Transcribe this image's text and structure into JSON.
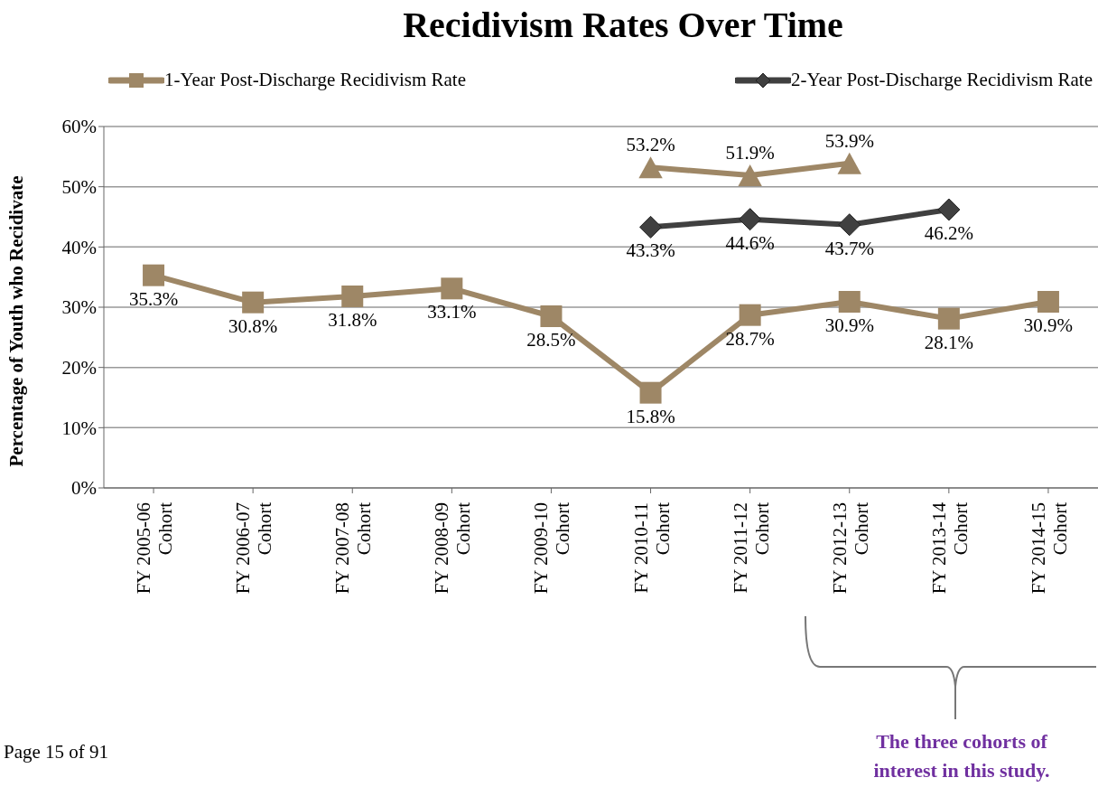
{
  "chart_data": {
    "type": "line",
    "title": "Recidivism Rates Over Time",
    "ylabel": "Percentage of Youth who Recidivate",
    "categories": [
      "FY 2005-06 Cohort",
      "FY 2006-07 Cohort",
      "FY 2007-08 Cohort",
      "FY 2008-09 Cohort",
      "FY 2009-10 Cohort",
      "FY 2010-11 Cohort",
      "FY 2011-12 Cohort",
      "FY 2012-13 Cohort",
      "FY 2013-14 Cohort",
      "FY 2014-15 Cohort"
    ],
    "series": [
      {
        "name": "1-Year Post-Discharge Recidivism Rate",
        "color": "#9e8766",
        "marker": "square",
        "values": [
          35.3,
          30.8,
          31.8,
          33.1,
          28.5,
          15.8,
          28.7,
          30.9,
          28.1,
          30.9
        ],
        "value_labels": [
          "35.3%",
          "30.8%",
          "31.8%",
          "33.1%",
          "28.5%",
          "15.8%",
          "28.7%",
          "30.9%",
          "28.1%",
          "30.9%"
        ]
      },
      {
        "color": "#9e8766",
        "marker": "triangle",
        "values": [
          null,
          null,
          null,
          null,
          null,
          53.2,
          51.9,
          53.9,
          null,
          null
        ],
        "value_labels": [
          null,
          null,
          null,
          null,
          null,
          "53.2%",
          "51.9%",
          "53.9%",
          null,
          null
        ]
      },
      {
        "name": "2-Year Post-Discharge Recidivism Rate",
        "color": "#404040",
        "marker": "diamond",
        "values": [
          null,
          null,
          null,
          null,
          null,
          43.3,
          44.6,
          43.7,
          46.2,
          null
        ],
        "value_labels": [
          null,
          null,
          null,
          null,
          null,
          "43.3%",
          "44.6%",
          "43.7%",
          "46.2%",
          null
        ]
      }
    ],
    "ylim": [
      0,
      60
    ],
    "yticks": [
      {
        "value": 0,
        "label": "0%"
      },
      {
        "value": 10,
        "label": "10%"
      },
      {
        "value": 20,
        "label": "20%"
      },
      {
        "value": 30,
        "label": "30%"
      },
      {
        "value": 40,
        "label": "40%"
      },
      {
        "value": 50,
        "label": "50%"
      },
      {
        "value": 60,
        "label": "60%"
      }
    ],
    "grid": "y",
    "legend": "top",
    "annotations": [
      "Page 15 of 91",
      "The three cohorts of interest in this study."
    ]
  }
}
